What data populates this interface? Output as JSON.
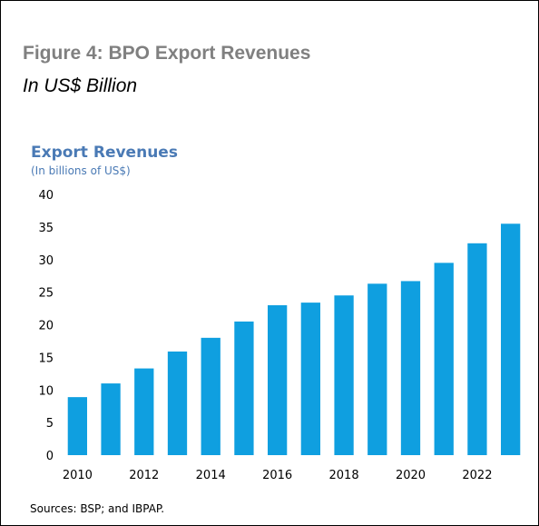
{
  "figure": {
    "title": "Figure 4: BPO Export Revenues",
    "subtitle": "In US$ Billion"
  },
  "chart_data": {
    "type": "bar",
    "title": "Export Revenues",
    "subtitle": "(In billions of US$)",
    "categories": [
      "2010",
      "2011",
      "2012",
      "2013",
      "2014",
      "2015",
      "2016",
      "2017",
      "2018",
      "2019",
      "2020",
      "2021",
      "2022",
      "2023"
    ],
    "x_tick_labels": [
      "2010",
      "2012",
      "2014",
      "2016",
      "2018",
      "2020",
      "2022"
    ],
    "values": [
      8.9,
      11.0,
      13.3,
      15.9,
      18.0,
      20.5,
      23.0,
      23.4,
      24.5,
      26.3,
      26.7,
      29.5,
      32.5,
      35.5
    ],
    "ylim": [
      0,
      40
    ],
    "y_ticks": [
      0,
      5,
      10,
      15,
      20,
      25,
      30,
      35,
      40
    ],
    "grid": false,
    "bar_color": "#0f9fe0"
  },
  "source": "Sources: BSP; and IBPAP."
}
